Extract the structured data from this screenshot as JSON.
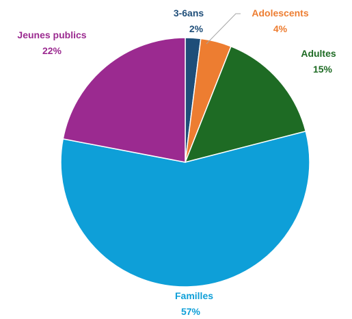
{
  "chart_data": {
    "type": "pie",
    "slices": [
      {
        "name": "3-6ans",
        "value": 2,
        "label": "2%",
        "color": "#1F4E79"
      },
      {
        "name": "Adolescents",
        "value": 4,
        "label": "4%",
        "color": "#ED7D31"
      },
      {
        "name": "Adultes",
        "value": 15,
        "label": "15%",
        "color": "#1E6B24"
      },
      {
        "name": "Familles",
        "value": 57,
        "label": "57%",
        "color": "#0E9FD8"
      },
      {
        "name": "Jeunes publics",
        "value": 22,
        "label": "22%",
        "color": "#9B2A90"
      }
    ],
    "title": "",
    "legend": "none"
  }
}
